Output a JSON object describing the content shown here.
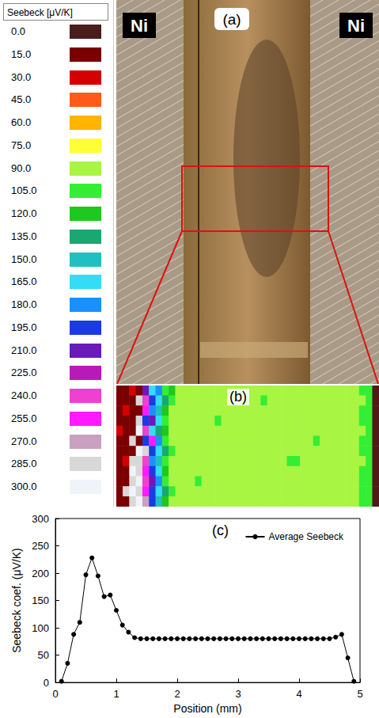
{
  "photo": {
    "label": "(a)",
    "labels": [
      "Ni",
      "Ni"
    ]
  },
  "chart_data": [
    {
      "type": "heatmap",
      "label": "(b)",
      "colorbar": {
        "title": "Seebeck [μV/K]",
        "ticks": [
          {
            "value": 0,
            "label": "0.0"
          },
          {
            "value": 15,
            "label": "15.0"
          },
          {
            "value": 30,
            "label": "30.0"
          },
          {
            "value": 45,
            "label": "45.0"
          },
          {
            "value": 60,
            "label": "60.0"
          },
          {
            "value": 75,
            "label": "75.0"
          },
          {
            "value": 90,
            "label": "90.0"
          },
          {
            "value": 105,
            "label": "105.0"
          },
          {
            "value": 120,
            "label": "120.0"
          },
          {
            "value": 135,
            "label": "135.0"
          },
          {
            "value": 150,
            "label": "150.0"
          },
          {
            "value": 165,
            "label": "165.0"
          },
          {
            "value": 180,
            "label": "180.0"
          },
          {
            "value": 195,
            "label": "195.0"
          },
          {
            "value": 210,
            "label": "210.0"
          },
          {
            "value": 225,
            "label": "225.0"
          },
          {
            "value": 240,
            "label": "240.0"
          },
          {
            "value": 255,
            "label": "255.0"
          },
          {
            "value": 270,
            "label": "270.0"
          },
          {
            "value": 285,
            "label": "285.0"
          },
          {
            "value": 300,
            "label": "300.0"
          }
        ],
        "colors": [
          "#4b1c1c",
          "#7a0000",
          "#d40000",
          "#ff5a1a",
          "#ffb400",
          "#ffff33",
          "#a8f542",
          "#33ee33",
          "#1ec81e",
          "#1aa872",
          "#20c0c0",
          "#33ddf5",
          "#1a90ff",
          "#1a3ae6",
          "#6a1ab8",
          "#b81ab8",
          "#f040d0",
          "#ff1aff",
          "#c8a0c0",
          "#d8d8d8",
          "#f0f4fa"
        ]
      },
      "cells": [
        [
          15,
          15,
          30,
          15,
          210,
          165,
          180,
          105,
          120,
          90,
          90,
          90,
          90,
          90,
          90,
          90,
          90,
          90,
          90,
          90,
          90,
          90,
          90,
          90,
          90,
          90,
          90,
          90,
          90,
          90,
          90,
          90,
          90,
          90,
          90,
          90,
          90,
          105,
          105,
          0
        ],
        [
          15,
          15,
          15,
          285,
          240,
          195,
          165,
          135,
          105,
          90,
          90,
          90,
          90,
          90,
          90,
          90,
          90,
          90,
          90,
          90,
          90,
          90,
          105,
          90,
          90,
          90,
          90,
          90,
          90,
          90,
          90,
          90,
          90,
          90,
          90,
          90,
          90,
          90,
          105,
          0
        ],
        [
          15,
          30,
          15,
          15,
          255,
          180,
          150,
          120,
          90,
          90,
          90,
          90,
          90,
          90,
          90,
          90,
          90,
          90,
          90,
          90,
          90,
          90,
          90,
          90,
          90,
          90,
          90,
          90,
          90,
          90,
          90,
          90,
          90,
          90,
          90,
          90,
          90,
          105,
          105,
          0
        ],
        [
          15,
          15,
          15,
          285,
          195,
          210,
          165,
          105,
          90,
          90,
          90,
          90,
          90,
          90,
          90,
          105,
          90,
          90,
          90,
          90,
          90,
          90,
          90,
          90,
          90,
          90,
          90,
          90,
          90,
          90,
          90,
          90,
          90,
          90,
          90,
          90,
          90,
          105,
          105,
          0
        ],
        [
          30,
          15,
          15,
          300,
          240,
          165,
          135,
          120,
          90,
          90,
          90,
          90,
          90,
          90,
          90,
          90,
          90,
          90,
          90,
          90,
          90,
          90,
          90,
          90,
          90,
          90,
          90,
          90,
          90,
          90,
          90,
          90,
          90,
          90,
          90,
          90,
          90,
          90,
          105,
          0
        ],
        [
          15,
          15,
          285,
          15,
          195,
          255,
          180,
          105,
          90,
          90,
          90,
          90,
          90,
          90,
          90,
          90,
          90,
          90,
          90,
          90,
          90,
          90,
          90,
          90,
          90,
          90,
          90,
          90,
          90,
          90,
          105,
          90,
          90,
          90,
          90,
          90,
          90,
          105,
          105,
          0
        ],
        [
          15,
          15,
          15,
          300,
          285,
          195,
          165,
          135,
          105,
          90,
          90,
          90,
          90,
          90,
          90,
          90,
          90,
          90,
          90,
          90,
          90,
          90,
          90,
          90,
          90,
          90,
          90,
          90,
          90,
          90,
          90,
          90,
          90,
          90,
          90,
          90,
          90,
          105,
          105,
          0
        ],
        [
          15,
          30,
          285,
          285,
          240,
          180,
          150,
          105,
          90,
          90,
          90,
          90,
          90,
          90,
          90,
          90,
          90,
          90,
          90,
          90,
          90,
          90,
          90,
          90,
          90,
          90,
          105,
          105,
          90,
          90,
          90,
          90,
          90,
          90,
          90,
          90,
          90,
          90,
          105,
          0
        ],
        [
          15,
          15,
          300,
          285,
          255,
          195,
          165,
          120,
          90,
          90,
          90,
          90,
          90,
          90,
          90,
          90,
          90,
          90,
          90,
          90,
          90,
          90,
          90,
          90,
          90,
          90,
          90,
          90,
          90,
          90,
          90,
          90,
          90,
          90,
          90,
          90,
          90,
          105,
          105,
          0
        ],
        [
          15,
          15,
          285,
          300,
          240,
          210,
          180,
          105,
          90,
          90,
          90,
          90,
          105,
          90,
          90,
          90,
          90,
          90,
          90,
          90,
          90,
          90,
          90,
          90,
          90,
          90,
          90,
          90,
          90,
          90,
          90,
          90,
          90,
          90,
          90,
          90,
          90,
          105,
          105,
          0
        ],
        [
          15,
          285,
          300,
          285,
          255,
          195,
          165,
          135,
          105,
          90,
          90,
          90,
          90,
          90,
          90,
          90,
          90,
          90,
          90,
          90,
          90,
          90,
          90,
          90,
          90,
          90,
          90,
          90,
          90,
          90,
          90,
          90,
          90,
          90,
          90,
          90,
          90,
          105,
          105,
          0
        ],
        [
          15,
          15,
          285,
          300,
          270,
          195,
          150,
          120,
          90,
          90,
          90,
          90,
          90,
          90,
          90,
          90,
          90,
          90,
          90,
          90,
          90,
          90,
          90,
          90,
          90,
          90,
          90,
          90,
          90,
          90,
          90,
          90,
          90,
          90,
          90,
          90,
          90,
          105,
          105,
          0
        ]
      ]
    },
    {
      "type": "line",
      "label": "(c)",
      "x_label": "Position (mm)",
      "y_label": "Seebeck coef. (μV/K)",
      "x": [
        0.1,
        0.2,
        0.3,
        0.4,
        0.5,
        0.6,
        0.7,
        0.8,
        0.9,
        1.0,
        1.1,
        1.2,
        1.3,
        1.4,
        1.5,
        1.6,
        1.7,
        1.8,
        1.9,
        2.0,
        2.1,
        2.2,
        2.3,
        2.4,
        2.5,
        2.6,
        2.7,
        2.8,
        2.9,
        3.0,
        3.1,
        3.2,
        3.3,
        3.4,
        3.5,
        3.6,
        3.7,
        3.8,
        3.9,
        4.0,
        4.1,
        4.2,
        4.3,
        4.4,
        4.5,
        4.6,
        4.7,
        4.8,
        4.9
      ],
      "series": [
        {
          "name": "Average Seebeck",
          "color": "#000000",
          "marker": "circle",
          "line_style": "solid",
          "values": [
            2,
            35,
            88,
            110,
            197,
            228,
            195,
            157,
            160,
            132,
            105,
            92,
            82,
            80,
            80,
            80,
            80,
            80,
            80,
            80,
            80,
            80,
            80,
            80,
            80,
            80,
            80,
            80,
            80,
            80,
            80,
            80,
            80,
            80,
            80,
            80,
            80,
            80,
            80,
            80,
            80,
            80,
            80,
            80,
            80,
            83,
            88,
            45,
            2
          ]
        }
      ],
      "xlim": [
        0,
        5
      ],
      "xticks": [
        0,
        1,
        2,
        3,
        4,
        5
      ],
      "ylim": [
        0,
        300
      ],
      "yticks": [
        0,
        50,
        100,
        150,
        200,
        250,
        300
      ],
      "grid": false,
      "legend": "upper right"
    }
  ]
}
